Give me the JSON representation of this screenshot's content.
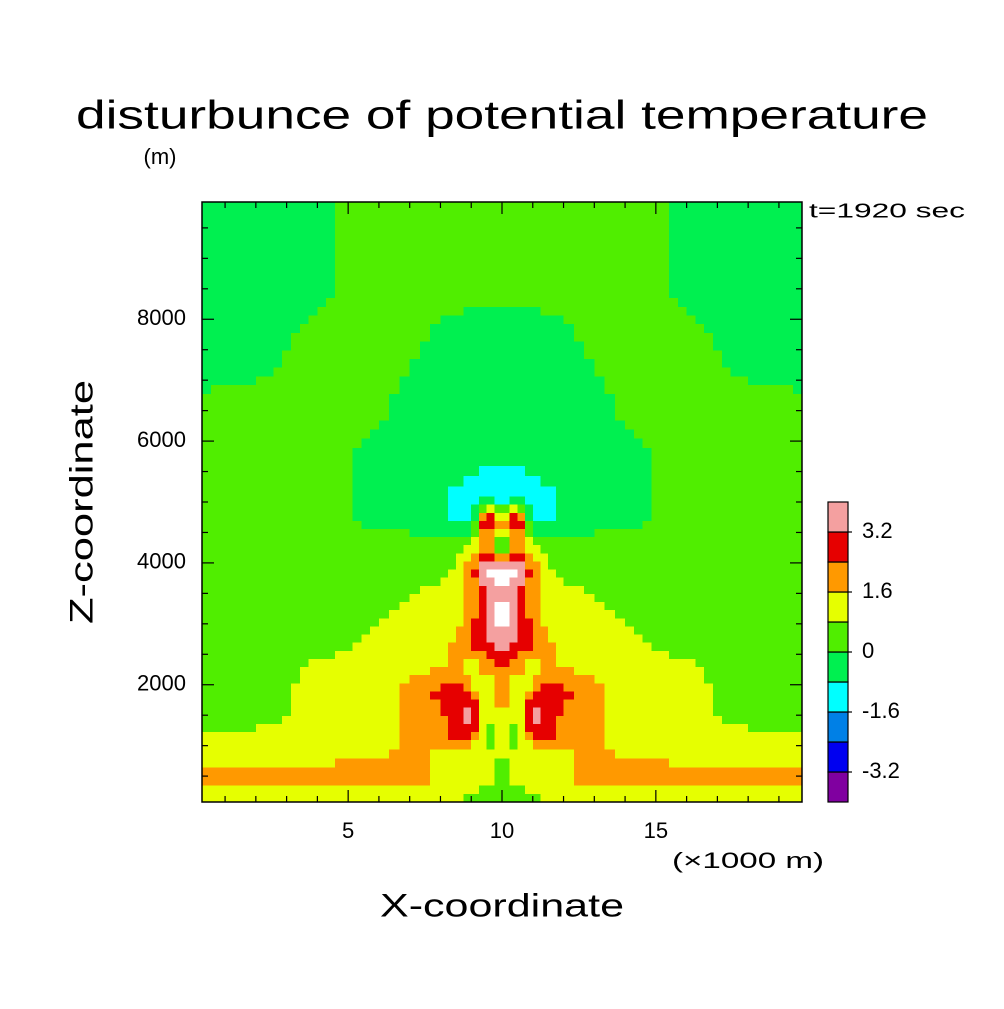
{
  "chart_data": {
    "type": "contour",
    "title": "disturbunce of potential temperature",
    "y_unit_label": "(m)",
    "x_unit_label": "(×1000 m)",
    "xlabel": "X-coordinate",
    "ylabel": "Z-coordinate",
    "annotation": "t=1920 sec",
    "xlim": [
      0.25,
      19.75
    ],
    "ylim": [
      75,
      9925
    ],
    "xticks": [
      5,
      10,
      15
    ],
    "yticks": [
      2000,
      4000,
      6000,
      8000
    ],
    "xminorticks": [
      1,
      2,
      3,
      4,
      6,
      7,
      8,
      9,
      11,
      12,
      13,
      14,
      16,
      17,
      18,
      19
    ],
    "yminorticks": [
      500,
      1000,
      1500,
      2500,
      3000,
      3500,
      4500,
      5000,
      5500,
      6500,
      7000,
      7500,
      8500,
      9000,
      9500
    ],
    "levels": [
      -4,
      -3.2,
      -2.4,
      -1.6,
      -0.8,
      0,
      0.8,
      1.6,
      2.4,
      3.2,
      4
    ],
    "level_colors": [
      "#8000a0",
      "#0000f0",
      "#0080e6",
      "#00ffff",
      "#00f050",
      "#50ee00",
      "#e6ff00",
      "#ff9900",
      "#e60000",
      "#f4a0a0"
    ],
    "above_color": "#ffffff",
    "below_color": "#400060",
    "colorbar_ticks": [
      -3.2,
      -1.6,
      0,
      1.6,
      3.2
    ],
    "x": [
      0.25,
      2,
      4,
      6,
      7,
      8,
      8.5,
      9,
      9.5,
      10,
      10.5,
      11,
      11.5,
      12,
      13,
      14,
      16,
      18,
      19.75
    ],
    "y": [
      75,
      500,
      800,
      1100,
      1500,
      1900,
      2300,
      2700,
      3100,
      3500,
      3900,
      4300,
      4700,
      5100,
      5600,
      6500,
      7500,
      8500,
      9925
    ],
    "z": [
      [
        1.0,
        1.0,
        1.0,
        1.0,
        1.0,
        1.2,
        1.0,
        0.6,
        0.5,
        0.3,
        0.5,
        0.6,
        1.0,
        1.2,
        1.0,
        1.0,
        1.0,
        1.0,
        1.0
      ],
      [
        2.0,
        2.0,
        2.0,
        2.0,
        2.0,
        1.5,
        1.2,
        1.2,
        1.0,
        0.5,
        1.0,
        1.2,
        1.2,
        1.5,
        2.0,
        2.0,
        2.0,
        2.0,
        2.0
      ],
      [
        1.2,
        1.2,
        1.4,
        1.6,
        1.8,
        1.3,
        1.0,
        1.1,
        1.0,
        0.8,
        1.0,
        1.1,
        1.0,
        1.3,
        1.8,
        1.6,
        1.4,
        1.2,
        1.2
      ],
      [
        1.0,
        1.0,
        1.2,
        1.3,
        1.8,
        1.8,
        2.5,
        2.0,
        0.5,
        1.2,
        0.5,
        2.0,
        2.5,
        1.8,
        1.8,
        1.3,
        1.2,
        1.0,
        1.0
      ],
      [
        0.5,
        0.6,
        1.0,
        1.2,
        1.8,
        2.2,
        3.0,
        4.2,
        0.6,
        1.8,
        0.6,
        4.2,
        3.0,
        2.2,
        1.8,
        1.2,
        1.0,
        0.6,
        0.5
      ],
      [
        0.4,
        0.5,
        1.0,
        1.4,
        1.8,
        2.6,
        2.8,
        2.0,
        0.5,
        2.4,
        0.5,
        2.0,
        2.8,
        2.6,
        1.8,
        1.4,
        1.0,
        0.5,
        0.4
      ],
      [
        0.3,
        0.4,
        0.9,
        1.0,
        1.3,
        1.6,
        1.8,
        1.0,
        2.0,
        2.6,
        2.0,
        1.0,
        1.8,
        1.6,
        1.3,
        1.0,
        0.9,
        0.4,
        0.3
      ],
      [
        0.3,
        0.3,
        0.6,
        0.9,
        1.0,
        1.2,
        1.8,
        2.6,
        3.0,
        3.5,
        3.0,
        2.6,
        1.8,
        1.2,
        1.0,
        0.9,
        0.6,
        0.3,
        0.3
      ],
      [
        0.3,
        0.3,
        0.5,
        0.8,
        0.9,
        1.0,
        1.3,
        2.0,
        3.5,
        4.5,
        3.5,
        2.0,
        1.3,
        1.0,
        0.9,
        0.8,
        0.5,
        0.3,
        0.3
      ],
      [
        0.3,
        0.3,
        0.4,
        0.6,
        0.8,
        0.9,
        1.0,
        1.8,
        3.0,
        4.2,
        3.0,
        1.8,
        1.0,
        0.9,
        0.8,
        0.6,
        0.4,
        0.3,
        0.3
      ],
      [
        0.2,
        0.2,
        0.3,
        0.4,
        0.5,
        0.6,
        0.9,
        2.0,
        4.3,
        4.5,
        4.3,
        2.0,
        0.9,
        0.6,
        0.5,
        0.4,
        0.3,
        0.2,
        0.2
      ],
      [
        0.1,
        0.1,
        0.2,
        0.2,
        0.3,
        0.3,
        0.5,
        1.2,
        2.0,
        -1.0,
        2.0,
        1.2,
        0.5,
        0.3,
        0.3,
        0.2,
        0.2,
        0.1,
        0.1
      ],
      [
        0.1,
        0.1,
        0.1,
        -0.1,
        -0.3,
        -0.5,
        -0.9,
        -1.2,
        4.2,
        1.5,
        4.2,
        -1.2,
        -0.9,
        -0.5,
        -0.3,
        -0.1,
        0.1,
        0.1,
        0.1
      ],
      [
        0.1,
        0.1,
        0.1,
        -0.1,
        -0.3,
        -0.6,
        -1.0,
        -1.3,
        -1.5,
        -1.8,
        -1.5,
        -1.3,
        -1.0,
        -0.6,
        -0.3,
        -0.1,
        0.1,
        0.1,
        0.1
      ],
      [
        0.1,
        0.1,
        0.1,
        -0.1,
        -0.2,
        -0.4,
        -0.5,
        -0.6,
        -0.7,
        -0.7,
        -0.7,
        -0.6,
        -0.5,
        -0.4,
        -0.2,
        -0.1,
        0.1,
        0.1,
        0.1
      ],
      [
        0.1,
        0.1,
        0.1,
        0.05,
        -0.1,
        -0.2,
        -0.3,
        -0.3,
        -0.3,
        -0.3,
        -0.3,
        -0.3,
        -0.3,
        -0.2,
        -0.1,
        0.05,
        0.1,
        0.1,
        0.1
      ],
      [
        -0.2,
        -0.1,
        0.1,
        0.1,
        0.05,
        -0.1,
        -0.15,
        -0.2,
        -0.2,
        -0.2,
        -0.2,
        -0.2,
        -0.15,
        -0.1,
        0.05,
        0.1,
        0.1,
        -0.1,
        -0.2
      ],
      [
        -0.2,
        -0.2,
        -0.05,
        0.1,
        0.1,
        0.1,
        0.1,
        0.1,
        0.1,
        0.1,
        0.1,
        0.1,
        0.1,
        0.1,
        0.1,
        0.1,
        -0.05,
        -0.2,
        -0.2
      ],
      [
        -0.2,
        -0.2,
        -0.05,
        0.1,
        0.1,
        0.1,
        0.1,
        0.1,
        0.1,
        0.1,
        0.1,
        0.1,
        0.1,
        0.1,
        0.1,
        0.1,
        -0.05,
        -0.2,
        -0.2
      ]
    ]
  }
}
